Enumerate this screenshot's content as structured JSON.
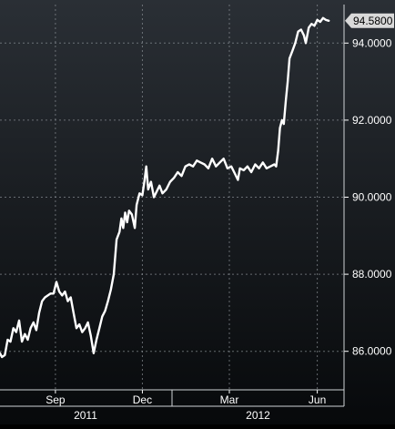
{
  "chart_data": {
    "type": "line",
    "title": "",
    "xlabel": "",
    "ylabel": "",
    "ylim": [
      85.0,
      95.0
    ],
    "yticks": [
      86,
      88,
      90,
      92,
      94
    ],
    "ytick_labels": [
      "86.0000",
      "88.0000",
      "90.0000",
      "92.0000",
      "94.0000"
    ],
    "xlim": [
      "2011-07-05",
      "2012-06-29"
    ],
    "xticks": [
      {
        "label": "Sep",
        "date": "2011-09-01"
      },
      {
        "label": "Dec",
        "date": "2011-12-01"
      },
      {
        "label": "Mar",
        "date": "2012-03-01"
      },
      {
        "label": "Jun",
        "date": "2012-06-01"
      }
    ],
    "year_labels": [
      {
        "label": "2011",
        "start": "2011-07-05",
        "end": "2011-12-31"
      },
      {
        "label": "2012",
        "start": "2012-01-01",
        "end": "2012-06-29"
      }
    ],
    "last_value_label": "94.5800",
    "last_value": 94.58,
    "grid": true,
    "colors": {
      "background_top": "#2a2f35",
      "background_bottom": "#07090b",
      "line": "#ffffff",
      "grid": "#8a8f95",
      "text": "#ffffff",
      "label_box": "#d9d9d9"
    },
    "series": [
      {
        "points": [
          [
            "2011-07-05",
            85.95
          ],
          [
            "2011-07-07",
            85.85
          ],
          [
            "2011-07-10",
            85.9
          ],
          [
            "2011-07-13",
            86.3
          ],
          [
            "2011-07-16",
            86.25
          ],
          [
            "2011-07-19",
            86.6
          ],
          [
            "2011-07-22",
            86.5
          ],
          [
            "2011-07-25",
            86.8
          ],
          [
            "2011-07-28",
            86.25
          ],
          [
            "2011-07-31",
            86.45
          ],
          [
            "2011-08-03",
            86.3
          ],
          [
            "2011-08-06",
            86.6
          ],
          [
            "2011-08-09",
            86.75
          ],
          [
            "2011-08-12",
            86.55
          ],
          [
            "2011-08-15",
            87.0
          ],
          [
            "2011-08-18",
            87.3
          ],
          [
            "2011-08-21",
            87.4
          ],
          [
            "2011-08-24",
            87.45
          ],
          [
            "2011-08-27",
            87.5
          ],
          [
            "2011-08-30",
            87.5
          ],
          [
            "2011-09-02",
            87.8
          ],
          [
            "2011-09-05",
            87.55
          ],
          [
            "2011-09-08",
            87.45
          ],
          [
            "2011-09-11",
            87.55
          ],
          [
            "2011-09-14",
            87.3
          ],
          [
            "2011-09-17",
            87.4
          ],
          [
            "2011-09-20",
            87.0
          ],
          [
            "2011-09-23",
            86.6
          ],
          [
            "2011-09-26",
            86.7
          ],
          [
            "2011-09-29",
            86.5
          ],
          [
            "2011-10-02",
            86.6
          ],
          [
            "2011-10-05",
            86.75
          ],
          [
            "2011-10-08",
            86.4
          ],
          [
            "2011-10-11",
            85.95
          ],
          [
            "2011-10-14",
            86.3
          ],
          [
            "2011-10-17",
            86.6
          ],
          [
            "2011-10-20",
            86.9
          ],
          [
            "2011-10-23",
            87.05
          ],
          [
            "2011-10-26",
            87.3
          ],
          [
            "2011-10-29",
            87.6
          ],
          [
            "2011-11-01",
            88.0
          ],
          [
            "2011-11-04",
            88.9
          ],
          [
            "2011-11-07",
            89.1
          ],
          [
            "2011-11-09",
            89.45
          ],
          [
            "2011-11-11",
            89.2
          ],
          [
            "2011-11-13",
            89.6
          ],
          [
            "2011-11-15",
            89.35
          ],
          [
            "2011-11-17",
            89.65
          ],
          [
            "2011-11-20",
            89.55
          ],
          [
            "2011-11-23",
            89.2
          ],
          [
            "2011-11-25",
            89.8
          ],
          [
            "2011-11-28",
            90.1
          ],
          [
            "2011-12-01",
            90.05
          ],
          [
            "2011-12-03",
            90.4
          ],
          [
            "2011-12-05",
            90.8
          ],
          [
            "2011-12-07",
            90.2
          ],
          [
            "2011-12-10",
            90.4
          ],
          [
            "2011-12-13",
            90.0
          ],
          [
            "2011-12-16",
            90.15
          ],
          [
            "2011-12-19",
            90.3
          ],
          [
            "2011-12-22",
            90.1
          ],
          [
            "2011-12-26",
            90.2
          ],
          [
            "2011-12-30",
            90.4
          ],
          [
            "2012-01-03",
            90.5
          ],
          [
            "2012-01-07",
            90.65
          ],
          [
            "2012-01-11",
            90.55
          ],
          [
            "2012-01-15",
            90.8
          ],
          [
            "2012-01-19",
            90.85
          ],
          [
            "2012-01-23",
            90.8
          ],
          [
            "2012-01-27",
            90.95
          ],
          [
            "2012-01-31",
            90.9
          ],
          [
            "2012-02-04",
            90.85
          ],
          [
            "2012-02-08",
            90.75
          ],
          [
            "2012-02-12",
            91.0
          ],
          [
            "2012-02-16",
            90.8
          ],
          [
            "2012-02-20",
            90.9
          ],
          [
            "2012-02-24",
            91.0
          ],
          [
            "2012-02-28",
            90.75
          ],
          [
            "2012-03-03",
            90.8
          ],
          [
            "2012-03-07",
            90.6
          ],
          [
            "2012-03-10",
            90.45
          ],
          [
            "2012-03-12",
            90.75
          ],
          [
            "2012-03-16",
            90.7
          ],
          [
            "2012-03-20",
            90.8
          ],
          [
            "2012-03-24",
            90.65
          ],
          [
            "2012-03-28",
            90.85
          ],
          [
            "2012-04-01",
            90.75
          ],
          [
            "2012-04-05",
            90.9
          ],
          [
            "2012-04-09",
            90.75
          ],
          [
            "2012-04-13",
            90.8
          ],
          [
            "2012-04-17",
            90.85
          ],
          [
            "2012-04-19",
            90.8
          ],
          [
            "2012-04-21",
            91.2
          ],
          [
            "2012-04-23",
            91.8
          ],
          [
            "2012-04-25",
            92.0
          ],
          [
            "2012-04-27",
            91.9
          ],
          [
            "2012-04-29",
            92.5
          ],
          [
            "2012-05-01",
            93.0
          ],
          [
            "2012-05-03",
            93.6
          ],
          [
            "2012-05-06",
            93.8
          ],
          [
            "2012-05-09",
            94.0
          ],
          [
            "2012-05-12",
            94.3
          ],
          [
            "2012-05-15",
            94.35
          ],
          [
            "2012-05-18",
            94.2
          ],
          [
            "2012-05-20",
            94.0
          ],
          [
            "2012-05-23",
            94.4
          ],
          [
            "2012-05-26",
            94.5
          ],
          [
            "2012-05-29",
            94.45
          ],
          [
            "2012-06-01",
            94.6
          ],
          [
            "2012-06-04",
            94.55
          ],
          [
            "2012-06-07",
            94.65
          ],
          [
            "2012-06-10",
            94.6
          ],
          [
            "2012-06-13",
            94.58
          ]
        ]
      }
    ]
  }
}
